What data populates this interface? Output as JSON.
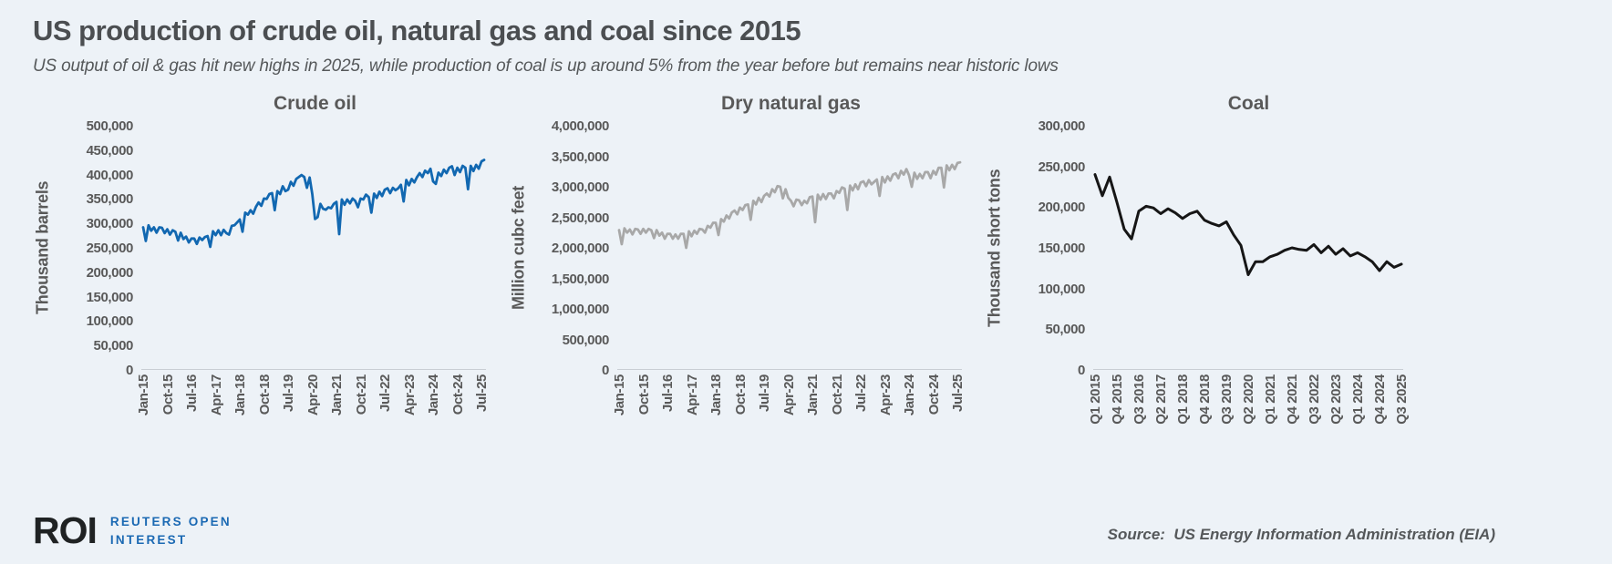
{
  "page": {
    "title": "US production of crude oil, natural gas and coal since 2015",
    "subtitle": "US output of oil & gas hit new highs in 2025, while production of coal is up around 5% from the year before but remains near historic lows",
    "background": "#edf2f7"
  },
  "chart_data": [
    {
      "type": "line",
      "name": "crude-oil",
      "title": "Crude oil",
      "ylabel": "Thousand barrels",
      "color": "#1268b1",
      "line_width": 2.8,
      "ylim": [
        0,
        500000
      ],
      "ytick_step": 50000,
      "axis_line_color": "#c9ced4",
      "x_tick_every": 9,
      "x_tick_labels": [
        "Jan-15",
        "Oct-15",
        "Jul-16",
        "Apr-17",
        "Jan-18",
        "Oct-18",
        "Jul-19",
        "Apr-20",
        "Jan-21",
        "Oct-21",
        "Jul-22",
        "Apr-23",
        "Jan-24",
        "Oct-24",
        "Jul-25"
      ],
      "values": [
        292000,
        264000,
        296000,
        285000,
        292000,
        281000,
        292000,
        291000,
        280000,
        288000,
        277000,
        286000,
        283000,
        265000,
        281000,
        268000,
        273000,
        261000,
        269000,
        269000,
        258000,
        271000,
        266000,
        272000,
        274000,
        252000,
        284000,
        276000,
        286000,
        276000,
        287000,
        280000,
        277000,
        295000,
        296000,
        302000,
        308000,
        283000,
        322000,
        318000,
        327000,
        320000,
        334000,
        343000,
        336000,
        351000,
        350000,
        360000,
        362000,
        327000,
        366000,
        360000,
        376000,
        366000,
        369000,
        385000,
        377000,
        391000,
        395000,
        399000,
        395000,
        373000,
        394000,
        360000,
        309000,
        313000,
        340000,
        330000,
        328000,
        333000,
        331000,
        340000,
        344000,
        278000,
        349000,
        338000,
        349000,
        341000,
        351000,
        346000,
        333000,
        351000,
        349000,
        359000,
        354000,
        322000,
        361000,
        352000,
        365000,
        356000,
        369000,
        372000,
        362000,
        373000,
        368000,
        372000,
        379000,
        345000,
        389000,
        378000,
        391000,
        384000,
        395000,
        403000,
        395000,
        408000,
        403000,
        412000,
        386000,
        381000,
        404000,
        397000,
        410000,
        403000,
        414000,
        417000,
        399000,
        414000,
        405000,
        418000,
        414000,
        370000,
        418000,
        407000,
        420000,
        412000,
        427000,
        430000
      ]
    },
    {
      "type": "line",
      "name": "dry-natural-gas",
      "title": "Dry natural gas",
      "ylabel": "Million cubc feet",
      "color": "#a8a8a8",
      "line_width": 2.8,
      "ylim": [
        0,
        4000000
      ],
      "ytick_step": 500000,
      "axis_line_color": "#c9ced4",
      "x_tick_every": 9,
      "x_tick_labels": [
        "Jan-15",
        "Oct-15",
        "Jul-16",
        "Apr-17",
        "Jan-18",
        "Oct-18",
        "Jul-19",
        "Apr-20",
        "Jan-21",
        "Oct-21",
        "Jul-22",
        "Apr-23",
        "Jan-24",
        "Oct-24",
        "Jul-25"
      ],
      "values": [
        2290000,
        2060000,
        2320000,
        2250000,
        2300000,
        2220000,
        2310000,
        2300000,
        2230000,
        2310000,
        2250000,
        2310000,
        2290000,
        2160000,
        2290000,
        2200000,
        2250000,
        2150000,
        2230000,
        2230000,
        2150000,
        2220000,
        2150000,
        2230000,
        2230000,
        2000000,
        2270000,
        2190000,
        2280000,
        2230000,
        2310000,
        2300000,
        2250000,
        2360000,
        2330000,
        2410000,
        2410000,
        2210000,
        2470000,
        2430000,
        2530000,
        2480000,
        2580000,
        2610000,
        2550000,
        2660000,
        2620000,
        2700000,
        2710000,
        2460000,
        2770000,
        2710000,
        2820000,
        2750000,
        2850000,
        2890000,
        2840000,
        2960000,
        2910000,
        3010000,
        3000000,
        2810000,
        2960000,
        2820000,
        2770000,
        2680000,
        2790000,
        2780000,
        2700000,
        2770000,
        2730000,
        2830000,
        2840000,
        2420000,
        2870000,
        2790000,
        2880000,
        2800000,
        2890000,
        2890000,
        2810000,
        2930000,
        2900000,
        2990000,
        2970000,
        2620000,
        3020000,
        2940000,
        3040000,
        2960000,
        3070000,
        3090000,
        3010000,
        3110000,
        3040000,
        3080000,
        3120000,
        2850000,
        3160000,
        3070000,
        3170000,
        3100000,
        3200000,
        3220000,
        3140000,
        3260000,
        3200000,
        3290000,
        3190000,
        3000000,
        3230000,
        3130000,
        3210000,
        3140000,
        3240000,
        3240000,
        3140000,
        3260000,
        3200000,
        3310000,
        3310000,
        2990000,
        3350000,
        3270000,
        3360000,
        3290000,
        3390000,
        3400000
      ]
    },
    {
      "type": "line",
      "name": "coal",
      "title": "Coal",
      "ylabel": "Thousand short tons",
      "color": "#161616",
      "line_width": 3,
      "ylim": [
        0,
        300000
      ],
      "ytick_step": 50000,
      "axis_line_color": "#c9ced4",
      "x_tick_every": 3,
      "x_tick_labels": [
        "Q1 2015",
        "Q4 2015",
        "Q3 2016",
        "Q2 2017",
        "Q1 2018",
        "Q4 2018",
        "Q3 2019",
        "Q2 2020",
        "Q1 2021",
        "Q4 2021",
        "Q3 2022",
        "Q2 2023",
        "Q1 2024",
        "Q4 2024",
        "Q3 2025"
      ],
      "values": [
        240000,
        214000,
        237000,
        206000,
        173000,
        161000,
        195000,
        201000,
        199000,
        192000,
        198000,
        193000,
        186000,
        192000,
        195000,
        184000,
        180000,
        177000,
        182000,
        166000,
        153000,
        117000,
        133000,
        133000,
        139000,
        142000,
        147000,
        150000,
        148000,
        147000,
        154000,
        144000,
        152000,
        142000,
        149000,
        140000,
        144000,
        139000,
        133000,
        122000,
        133000,
        126000,
        130000
      ]
    }
  ],
  "footer": {
    "roi": "ROI",
    "reuters_line1": "REUTERS OPEN",
    "reuters_line2": "INTEREST",
    "source": "Source:  US Energy Information Administration (EIA)"
  }
}
